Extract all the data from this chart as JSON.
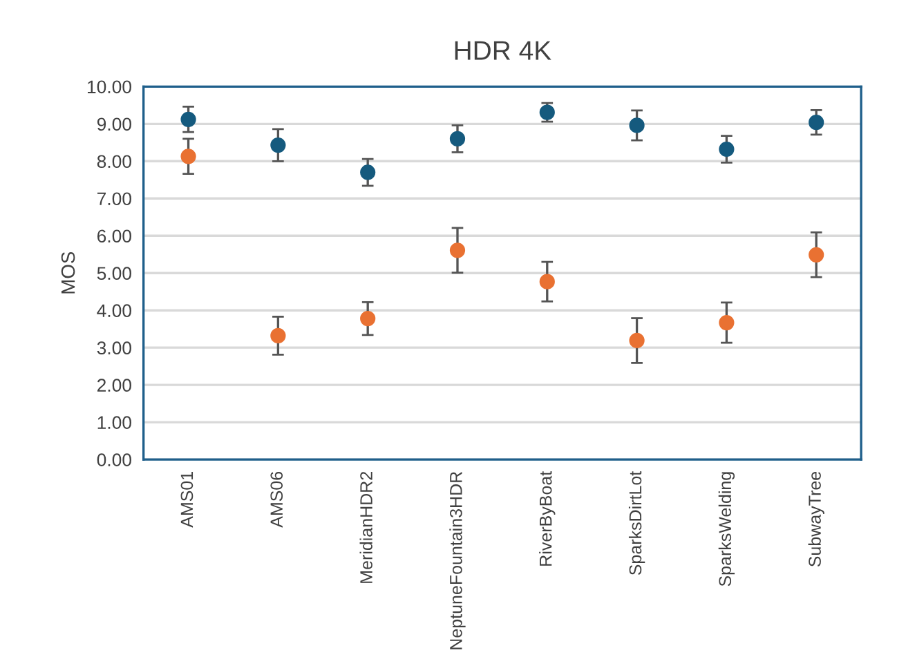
{
  "chart_data": {
    "type": "scatter",
    "title": "HDR 4K",
    "ylabel": "MOS",
    "categories": [
      "AMS01",
      "AMS06",
      "MeridianHDR2",
      "NeptuneFountain3HDR",
      "RiverByBoat",
      "SparksDirtLot",
      "SparksWelding",
      "SubwayTree"
    ],
    "series": [
      {
        "color": "#155a7e",
        "values": [
          9.12,
          8.43,
          7.7,
          8.6,
          9.31,
          8.96,
          8.32,
          9.04
        ],
        "errors": [
          0.34,
          0.43,
          0.36,
          0.36,
          0.25,
          0.4,
          0.36,
          0.33
        ]
      },
      {
        "color": "#e97132",
        "values": [
          8.13,
          3.32,
          3.78,
          5.61,
          4.77,
          3.19,
          3.67,
          5.49
        ],
        "errors": [
          0.47,
          0.51,
          0.44,
          0.6,
          0.53,
          0.6,
          0.54,
          0.6
        ]
      }
    ],
    "ylim": [
      0,
      10
    ],
    "yticks": [
      {
        "value": 0,
        "label": "0.00"
      },
      {
        "value": 1,
        "label": "1.00"
      },
      {
        "value": 2,
        "label": "2.00"
      },
      {
        "value": 3,
        "label": "3.00"
      },
      {
        "value": 4,
        "label": "4.00"
      },
      {
        "value": 5,
        "label": "5.00"
      },
      {
        "value": 6,
        "label": "6.00"
      },
      {
        "value": 7,
        "label": "7.00"
      },
      {
        "value": 8,
        "label": "8.00"
      },
      {
        "value": 9,
        "label": "9.00"
      },
      {
        "value": 10,
        "label": "10.00"
      }
    ],
    "grid": "y",
    "marker": "circle"
  }
}
